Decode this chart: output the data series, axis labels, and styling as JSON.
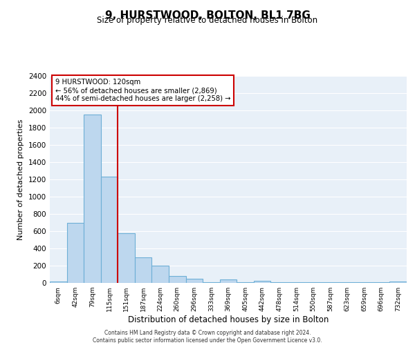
{
  "title": "9, HURSTWOOD, BOLTON, BL1 7BG",
  "subtitle": "Size of property relative to detached houses in Bolton",
  "xlabel": "Distribution of detached houses by size in Bolton",
  "ylabel": "Number of detached properties",
  "categories": [
    "6sqm",
    "42sqm",
    "79sqm",
    "115sqm",
    "151sqm",
    "187sqm",
    "224sqm",
    "260sqm",
    "296sqm",
    "333sqm",
    "369sqm",
    "405sqm",
    "442sqm",
    "478sqm",
    "514sqm",
    "550sqm",
    "587sqm",
    "623sqm",
    "659sqm",
    "696sqm",
    "732sqm"
  ],
  "values": [
    20,
    700,
    1950,
    1230,
    575,
    300,
    200,
    80,
    45,
    10,
    40,
    10,
    25,
    10,
    5,
    5,
    5,
    5,
    5,
    5,
    20
  ],
  "bar_color": "#bdd7ee",
  "bar_edge_color": "#6dafd6",
  "red_line_x": 3.5,
  "red_line_label": "9 HURSTWOOD: 120sqm",
  "annotation_line1": "← 56% of detached houses are smaller (2,869)",
  "annotation_line2": "44% of semi-detached houses are larger (2,258) →",
  "annotation_box_color": "#ffffff",
  "annotation_box_edge": "#cc0000",
  "ylim": [
    0,
    2400
  ],
  "yticks": [
    0,
    200,
    400,
    600,
    800,
    1000,
    1200,
    1400,
    1600,
    1800,
    2000,
    2200,
    2400
  ],
  "bg_color": "#e8f0f8",
  "grid_color": "#ffffff",
  "footer_line1": "Contains HM Land Registry data © Crown copyright and database right 2024.",
  "footer_line2": "Contains public sector information licensed under the Open Government Licence v3.0."
}
